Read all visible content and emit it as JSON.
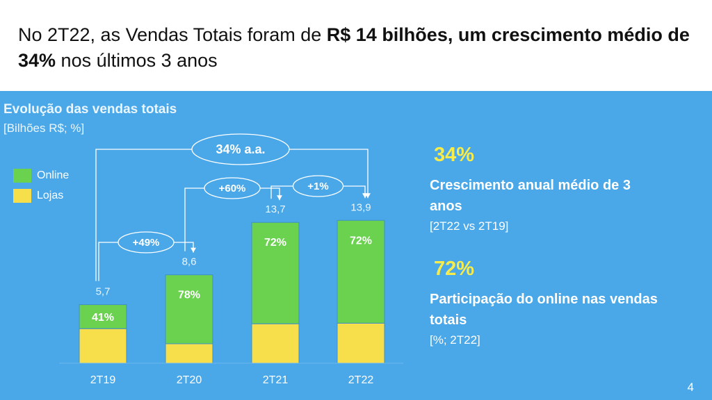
{
  "headline": {
    "part1": "No 2T22, as Vendas Totais foram de ",
    "bold1": "R$ 14 bilhões, um crescimento médio de 34%",
    "part2": " nos últimos 3 anos"
  },
  "colors": {
    "panel_bg": "#4aa8e8",
    "online": "#6ad24e",
    "lojas": "#f7df4c",
    "accent_yellow": "#f8ec4a"
  },
  "chart_data": {
    "type": "bar",
    "stacked": true,
    "title": "Evolução das vendas totais",
    "subtitle": "[Bilhões R$; %]",
    "categories": [
      "2T19",
      "2T20",
      "2T21",
      "2T22"
    ],
    "totals": [
      5.7,
      8.6,
      13.7,
      13.9
    ],
    "total_labels": [
      "5,7",
      "8,6",
      "13,7",
      "13,9"
    ],
    "series": [
      {
        "name": "Online",
        "share_pct": [
          41,
          78,
          72,
          72
        ],
        "share_labels": [
          "41%",
          "78%",
          "72%",
          "72%"
        ]
      },
      {
        "name": "Lojas",
        "share_pct": [
          59,
          22,
          28,
          28
        ]
      }
    ],
    "legend": [
      "Online",
      "Lojas"
    ],
    "legend_position": "top-left",
    "growth_annotations": [
      {
        "from": "2T19",
        "to": "2T20",
        "label": "+49%"
      },
      {
        "from": "2T20",
        "to": "2T21",
        "label": "+60%"
      },
      {
        "from": "2T21",
        "to": "2T22",
        "label": "+1%"
      },
      {
        "from": "2T19",
        "to": "2T22",
        "label": "34% a.a."
      }
    ],
    "grid": false
  },
  "metrics": [
    {
      "value": "34%",
      "label": "Crescimento anual médio de 3 anos",
      "note": "[2T22 vs 2T19]"
    },
    {
      "value": "72%",
      "label": "Participação do online nas vendas totais",
      "note": "[%; 2T22]"
    }
  ],
  "page_number": "4"
}
